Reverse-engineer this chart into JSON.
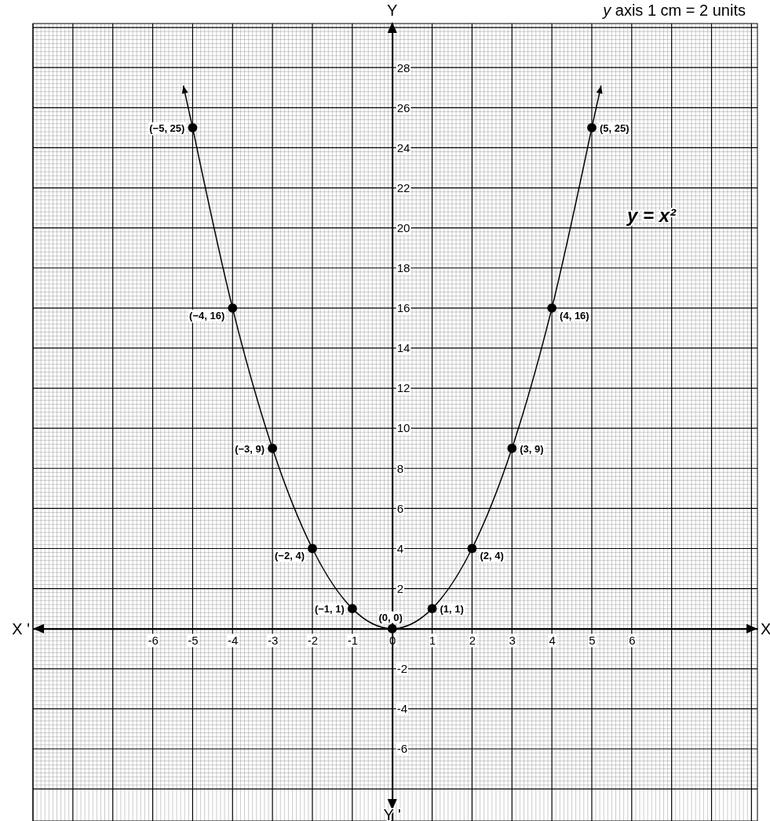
{
  "chart_data": {
    "type": "line",
    "title": "y axis 1 cm = 2 units",
    "xlabel": "X",
    "ylabel": "Y",
    "annotations": [
      "X '",
      "Y '"
    ],
    "x": [
      -5,
      -4,
      -3,
      -2,
      -1,
      0,
      1,
      2,
      3,
      4,
      5
    ],
    "series": [
      {
        "name": "y = x²",
        "color": "#000000",
        "values": [
          25,
          16,
          9,
          4,
          1,
          0,
          1,
          4,
          9,
          16,
          25
        ],
        "value_labels": [
          "(−5, 25)",
          "(−4, 16)",
          "(−3, 9)",
          "(−2, 4)",
          "(−1, 1)",
          "(0, 0)",
          "(1, 1)",
          "(2, 4)",
          "(3, 9)",
          "(4, 16)",
          "(5, 25)"
        ]
      }
    ],
    "xlim": [
      -9,
      9.15
    ],
    "ylim": [
      -9.6,
      30.2
    ],
    "xticks": [
      {
        "value": -9,
        "label": null
      },
      {
        "value": -8,
        "label": null
      },
      {
        "value": -7,
        "label": null
      },
      -6,
      -5,
      -4,
      -3,
      -2,
      -1,
      0,
      1,
      2,
      3,
      4,
      5,
      6,
      {
        "value": 7,
        "label": null
      },
      {
        "value": 8,
        "label": null
      },
      {
        "value": 9,
        "label": null
      }
    ],
    "yticks": [
      {
        "value": -8,
        "label": null
      },
      -6,
      -4,
      -2,
      {
        "value": 0,
        "label": null
      },
      2,
      4,
      6,
      8,
      10,
      12,
      14,
      16,
      18,
      20,
      22,
      24,
      26,
      28,
      {
        "value": 30,
        "label": null
      }
    ],
    "grid": true,
    "marker": "circle",
    "line_style": "solid"
  }
}
